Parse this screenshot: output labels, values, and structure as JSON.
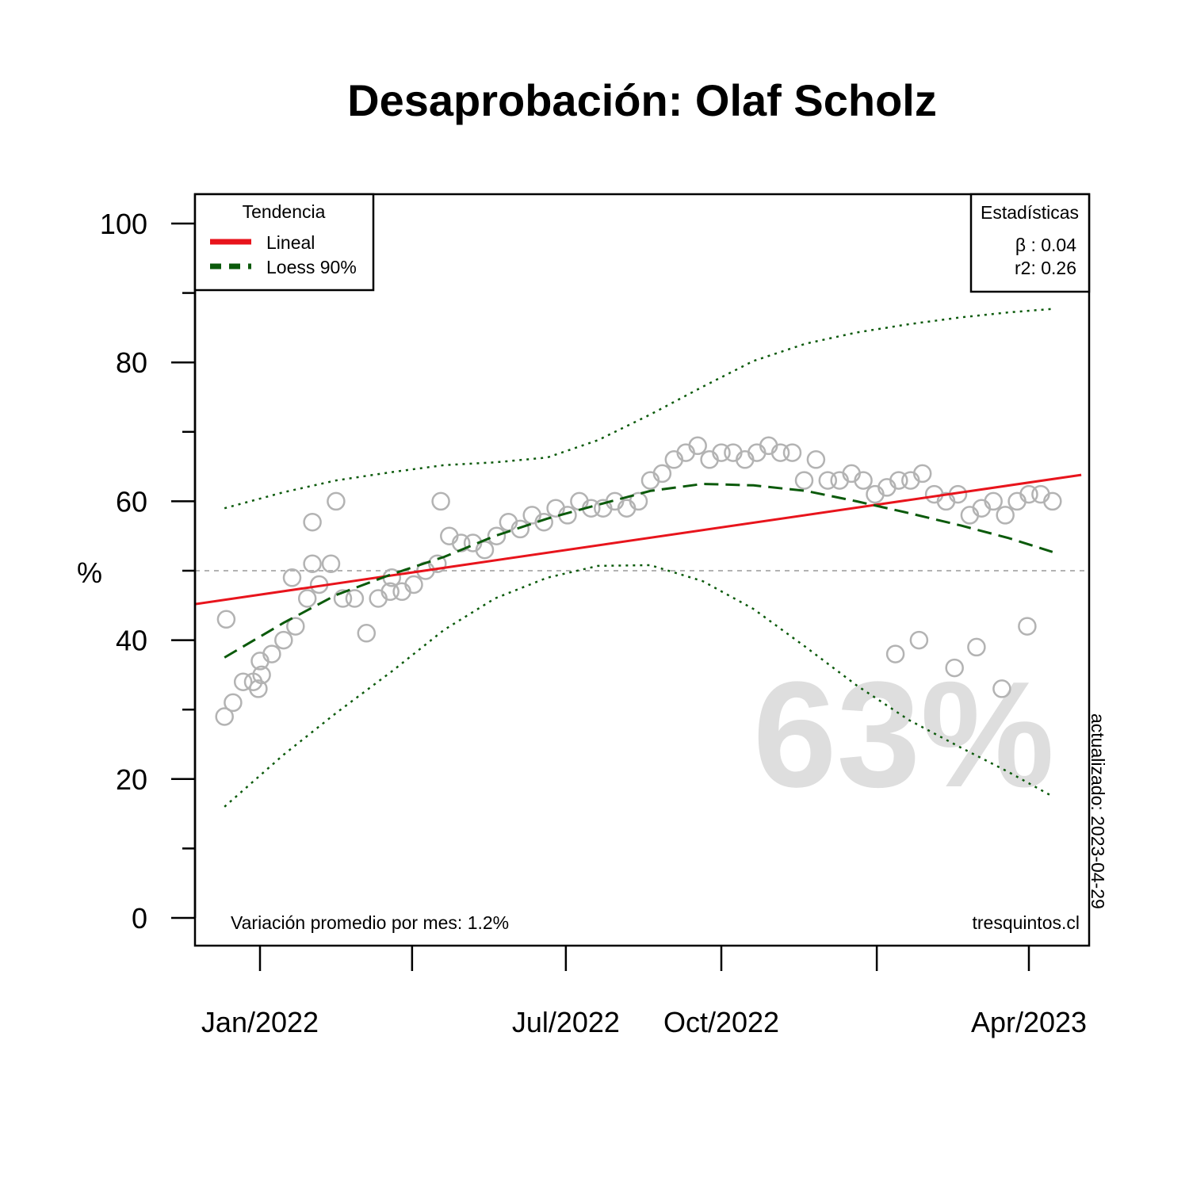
{
  "chart_data": {
    "type": "scatter",
    "title": "Desaprobación: Olaf Scholz",
    "ylabel": "%",
    "xlabel": "",
    "ylim": [
      0,
      100
    ],
    "y_ticks": [
      0,
      20,
      40,
      60,
      80,
      100
    ],
    "x_ticks": [
      {
        "date": "2022-01",
        "label": "Jan/2022"
      },
      {
        "date": "2022-04",
        "label": ""
      },
      {
        "date": "2022-07",
        "label": "Jul/2022"
      },
      {
        "date": "2022-10",
        "label": "Oct/2022"
      },
      {
        "date": "2023-01",
        "label": ""
      },
      {
        "date": "2023-04",
        "label": "Apr/2023"
      }
    ],
    "reference_line": 50,
    "big_value": "63%",
    "legend_trend": {
      "title": "Tendencia",
      "items": [
        {
          "label": "Lineal",
          "color": "#e8141c",
          "style": "solid"
        },
        {
          "label": "Loess 90%",
          "color": "#0b5a0b",
          "style": "dashed"
        }
      ]
    },
    "legend_stats": {
      "title": "Estadísticas",
      "beta": "β : 0.04",
      "r2": "r2: 0.26"
    },
    "footer_left": "Variación promedio por mes: 1.2%",
    "footer_right": "tresquintos.cl",
    "updated": "actualizado: 2023-04-29",
    "colors": {
      "points": "#b3b3b3",
      "linear": "#e8141c",
      "loess": "#0b5a0b",
      "refline": "#b3b3b3"
    },
    "points": [
      {
        "x": "2021-12-11",
        "y": 29
      },
      {
        "x": "2021-12-12",
        "y": 43
      },
      {
        "x": "2021-12-16",
        "y": 31
      },
      {
        "x": "2021-12-22",
        "y": 34
      },
      {
        "x": "2021-12-28",
        "y": 34
      },
      {
        "x": "2021-12-31",
        "y": 33
      },
      {
        "x": "2022-01-01",
        "y": 37
      },
      {
        "x": "2022-01-02",
        "y": 35
      },
      {
        "x": "2022-01-08",
        "y": 38
      },
      {
        "x": "2022-01-15",
        "y": 40
      },
      {
        "x": "2022-01-20",
        "y": 49
      },
      {
        "x": "2022-01-22",
        "y": 42
      },
      {
        "x": "2022-01-29",
        "y": 46
      },
      {
        "x": "2022-02-01",
        "y": 57
      },
      {
        "x": "2022-02-01",
        "y": 51
      },
      {
        "x": "2022-02-05",
        "y": 48
      },
      {
        "x": "2022-02-12",
        "y": 51
      },
      {
        "x": "2022-02-15",
        "y": 60
      },
      {
        "x": "2022-02-19",
        "y": 46
      },
      {
        "x": "2022-02-26",
        "y": 46
      },
      {
        "x": "2022-03-05",
        "y": 41
      },
      {
        "x": "2022-03-12",
        "y": 46
      },
      {
        "x": "2022-03-19",
        "y": 47
      },
      {
        "x": "2022-03-20",
        "y": 49
      },
      {
        "x": "2022-03-26",
        "y": 47
      },
      {
        "x": "2022-04-02",
        "y": 48
      },
      {
        "x": "2022-04-09",
        "y": 50
      },
      {
        "x": "2022-04-16",
        "y": 51
      },
      {
        "x": "2022-04-18",
        "y": 60
      },
      {
        "x": "2022-04-23",
        "y": 55
      },
      {
        "x": "2022-04-30",
        "y": 54
      },
      {
        "x": "2022-05-07",
        "y": 54
      },
      {
        "x": "2022-05-14",
        "y": 53
      },
      {
        "x": "2022-05-21",
        "y": 55
      },
      {
        "x": "2022-05-28",
        "y": 57
      },
      {
        "x": "2022-06-04",
        "y": 56
      },
      {
        "x": "2022-06-11",
        "y": 58
      },
      {
        "x": "2022-06-18",
        "y": 57
      },
      {
        "x": "2022-06-25",
        "y": 59
      },
      {
        "x": "2022-07-02",
        "y": 58
      },
      {
        "x": "2022-07-09",
        "y": 60
      },
      {
        "x": "2022-07-16",
        "y": 59
      },
      {
        "x": "2022-07-23",
        "y": 59
      },
      {
        "x": "2022-07-30",
        "y": 60
      },
      {
        "x": "2022-08-06",
        "y": 59
      },
      {
        "x": "2022-08-13",
        "y": 60
      },
      {
        "x": "2022-08-20",
        "y": 63
      },
      {
        "x": "2022-08-27",
        "y": 64
      },
      {
        "x": "2022-09-03",
        "y": 66
      },
      {
        "x": "2022-09-10",
        "y": 67
      },
      {
        "x": "2022-09-17",
        "y": 68
      },
      {
        "x": "2022-09-24",
        "y": 66
      },
      {
        "x": "2022-10-01",
        "y": 67
      },
      {
        "x": "2022-10-08",
        "y": 67
      },
      {
        "x": "2022-10-15",
        "y": 66
      },
      {
        "x": "2022-10-22",
        "y": 67
      },
      {
        "x": "2022-10-29",
        "y": 68
      },
      {
        "x": "2022-11-05",
        "y": 67
      },
      {
        "x": "2022-11-12",
        "y": 67
      },
      {
        "x": "2022-11-19",
        "y": 63
      },
      {
        "x": "2022-11-26",
        "y": 66
      },
      {
        "x": "2022-12-03",
        "y": 63
      },
      {
        "x": "2022-12-10",
        "y": 63
      },
      {
        "x": "2022-12-17",
        "y": 64
      },
      {
        "x": "2022-12-24",
        "y": 63
      },
      {
        "x": "2022-12-31",
        "y": 61
      },
      {
        "x": "2023-01-07",
        "y": 62
      },
      {
        "x": "2023-01-12",
        "y": 38
      },
      {
        "x": "2023-01-14",
        "y": 63
      },
      {
        "x": "2023-01-21",
        "y": 63
      },
      {
        "x": "2023-01-26",
        "y": 40
      },
      {
        "x": "2023-01-28",
        "y": 64
      },
      {
        "x": "2023-02-04",
        "y": 61
      },
      {
        "x": "2023-02-11",
        "y": 60
      },
      {
        "x": "2023-02-16",
        "y": 36
      },
      {
        "x": "2023-02-18",
        "y": 61
      },
      {
        "x": "2023-02-25",
        "y": 58
      },
      {
        "x": "2023-03-01",
        "y": 39
      },
      {
        "x": "2023-03-04",
        "y": 59
      },
      {
        "x": "2023-03-11",
        "y": 60
      },
      {
        "x": "2023-03-16",
        "y": 33
      },
      {
        "x": "2023-03-18",
        "y": 58
      },
      {
        "x": "2023-03-25",
        "y": 60
      },
      {
        "x": "2023-03-31",
        "y": 42
      },
      {
        "x": "2023-04-01",
        "y": 61
      },
      {
        "x": "2023-04-08",
        "y": 61
      },
      {
        "x": "2023-04-15",
        "y": 60
      }
    ],
    "linear": [
      {
        "x": "2021-11-24",
        "y": 45.2
      },
      {
        "x": "2023-05-02",
        "y": 63.8
      }
    ],
    "loess": [
      {
        "x": "2021-12-11",
        "y": 37.5
      },
      {
        "x": "2022-01-15",
        "y": 42.5
      },
      {
        "x": "2022-02-15",
        "y": 46.5
      },
      {
        "x": "2022-03-20",
        "y": 49.5
      },
      {
        "x": "2022-04-20",
        "y": 52
      },
      {
        "x": "2022-05-20",
        "y": 55
      },
      {
        "x": "2022-06-20",
        "y": 57.5
      },
      {
        "x": "2022-07-20",
        "y": 59.5
      },
      {
        "x": "2022-08-20",
        "y": 61.5
      },
      {
        "x": "2022-09-20",
        "y": 62.5
      },
      {
        "x": "2022-10-20",
        "y": 62.3
      },
      {
        "x": "2022-11-20",
        "y": 61.5
      },
      {
        "x": "2022-12-20",
        "y": 60
      },
      {
        "x": "2023-01-20",
        "y": 58.3
      },
      {
        "x": "2023-02-20",
        "y": 56.5
      },
      {
        "x": "2023-03-20",
        "y": 54.7
      },
      {
        "x": "2023-04-15",
        "y": 52.7
      }
    ],
    "loess_upper": [
      {
        "x": "2021-12-11",
        "y": 59
      },
      {
        "x": "2022-01-15",
        "y": 61.3
      },
      {
        "x": "2022-02-15",
        "y": 63
      },
      {
        "x": "2022-03-20",
        "y": 64.2
      },
      {
        "x": "2022-04-20",
        "y": 65.2
      },
      {
        "x": "2022-05-20",
        "y": 65.6
      },
      {
        "x": "2022-06-20",
        "y": 66.3
      },
      {
        "x": "2022-07-20",
        "y": 68.8
      },
      {
        "x": "2022-08-20",
        "y": 72.5
      },
      {
        "x": "2022-09-20",
        "y": 76.5
      },
      {
        "x": "2022-10-20",
        "y": 80.2
      },
      {
        "x": "2022-11-20",
        "y": 82.7
      },
      {
        "x": "2022-12-20",
        "y": 84.3
      },
      {
        "x": "2023-01-20",
        "y": 85.5
      },
      {
        "x": "2023-02-20",
        "y": 86.5
      },
      {
        "x": "2023-03-20",
        "y": 87.2
      },
      {
        "x": "2023-04-15",
        "y": 87.7
      }
    ],
    "loess_lower": [
      {
        "x": "2021-12-11",
        "y": 16
      },
      {
        "x": "2022-01-15",
        "y": 23.5
      },
      {
        "x": "2022-02-15",
        "y": 29.5
      },
      {
        "x": "2022-03-20",
        "y": 35.5
      },
      {
        "x": "2022-04-20",
        "y": 41.5
      },
      {
        "x": "2022-05-20",
        "y": 46
      },
      {
        "x": "2022-06-20",
        "y": 49
      },
      {
        "x": "2022-07-20",
        "y": 50.7
      },
      {
        "x": "2022-08-20",
        "y": 50.8
      },
      {
        "x": "2022-09-20",
        "y": 48.5
      },
      {
        "x": "2022-10-20",
        "y": 44.5
      },
      {
        "x": "2022-11-20",
        "y": 39
      },
      {
        "x": "2022-12-20",
        "y": 33.5
      },
      {
        "x": "2023-01-20",
        "y": 28.5
      },
      {
        "x": "2023-02-20",
        "y": 24.5
      },
      {
        "x": "2023-03-20",
        "y": 21
      },
      {
        "x": "2023-04-15",
        "y": 17.5
      }
    ]
  }
}
